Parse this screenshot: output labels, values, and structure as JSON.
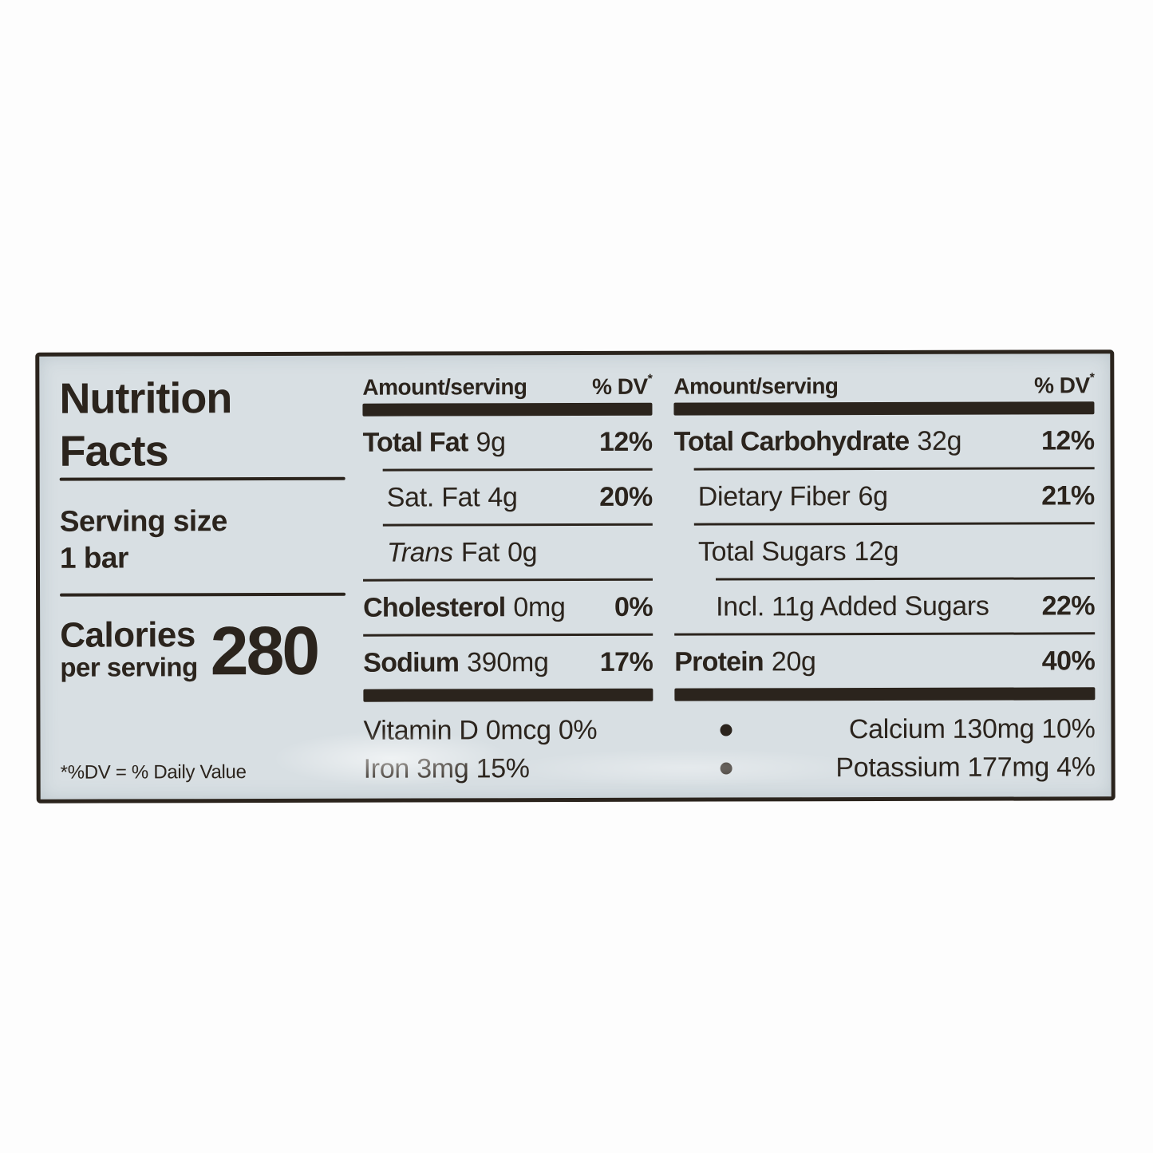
{
  "nutrition_label": {
    "title_line1": "Nutrition",
    "title_line2": "Facts",
    "serving_size_label": "Serving size",
    "serving_size_value": "1 bar",
    "calories_label": "Calories",
    "calories_per": "per serving",
    "calories_value": "280",
    "footnote": "*%DV = % Daily Value",
    "header": {
      "amount": "Amount/serving",
      "dv": "% DV",
      "dv_mark": "*"
    },
    "fat_column": {
      "total_fat_name": "Total Fat",
      "total_fat_amount": "9g",
      "total_fat_dv": "12%",
      "sat_fat_name": "Sat. Fat",
      "sat_fat_amount": "4g",
      "sat_fat_dv": "20%",
      "trans_fat_name_italic": "Trans",
      "trans_fat_name_rest": "Fat",
      "trans_fat_amount": "0g",
      "cholesterol_name": "Cholesterol",
      "cholesterol_amount": "0mg",
      "cholesterol_dv": "0%",
      "sodium_name": "Sodium",
      "sodium_amount": "390mg",
      "sodium_dv": "17%",
      "micros": [
        {
          "text": "Vitamin D 0mcg 0%"
        },
        {
          "text": "Iron 3mg 15%"
        }
      ]
    },
    "carb_column": {
      "total_carb_name": "Total Carbohydrate",
      "total_carb_amount": "32g",
      "total_carb_dv": "12%",
      "fiber_name": "Dietary Fiber",
      "fiber_amount": "6g",
      "fiber_dv": "21%",
      "sugars_name": "Total Sugars",
      "sugars_amount": "12g",
      "added_sugars_name": "Incl. 11g Added Sugars",
      "added_sugars_dv": "22%",
      "protein_name": "Protein",
      "protein_amount": "20g",
      "protein_dv": "40%",
      "micros": [
        {
          "text": "Calcium 130mg 10%"
        },
        {
          "text": "Potassium 177mg 4%"
        }
      ]
    },
    "colors": {
      "ink": "#2b241d",
      "label_bg": "#d8dfe3",
      "page_bg": "#fdfdfd"
    }
  }
}
